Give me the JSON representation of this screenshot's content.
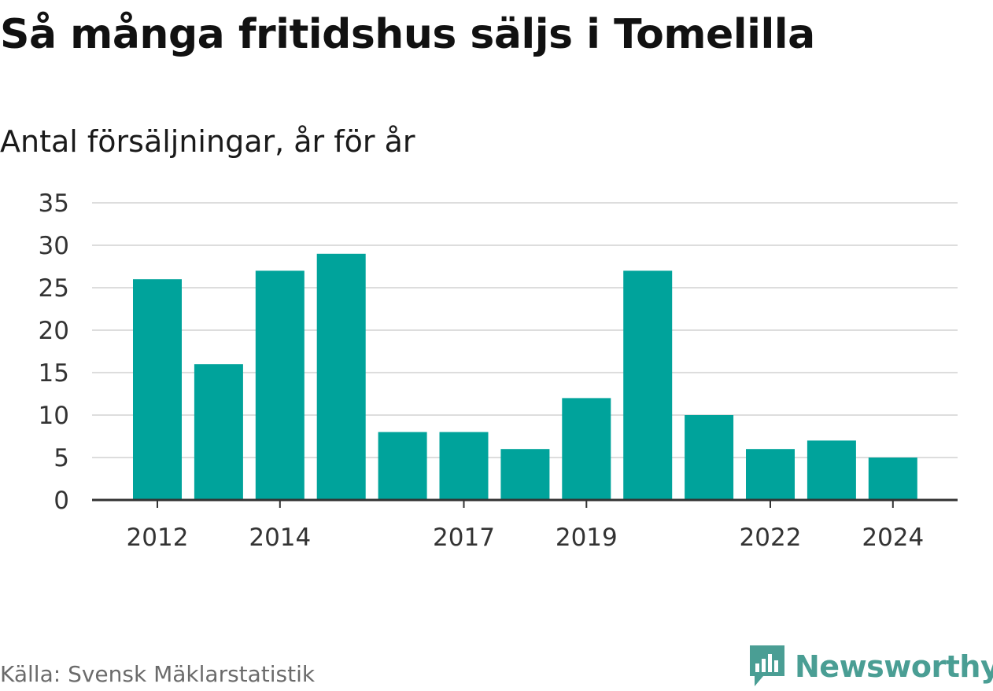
{
  "title": "Så många fritidshus säljs i Tomelilla",
  "subtitle": "Antal försäljningar, år för år",
  "source": "Källa: Svensk Mäklarstatistik",
  "brand": "Newsworthy",
  "colors": {
    "bar": "#00a39b",
    "grid": "#dddddd",
    "axis": "#333333",
    "brand": "#4a9e94"
  },
  "icons": {
    "logo": "newsworthy-chart-bubble-icon"
  },
  "chart_data": {
    "type": "bar",
    "categories": [
      "2012",
      "2013",
      "2014",
      "2015",
      "2016",
      "2017",
      "2018",
      "2019",
      "2020",
      "2021",
      "2022",
      "2023",
      "2024"
    ],
    "values": [
      26,
      16,
      27,
      29,
      8,
      8,
      6,
      12,
      27,
      10,
      6,
      7,
      5
    ],
    "x_tick_labels": [
      "2012",
      "2014",
      "2017",
      "2019",
      "2022",
      "2024"
    ],
    "y_ticks": [
      0,
      5,
      10,
      15,
      20,
      25,
      30,
      35
    ],
    "ylim": [
      0,
      35
    ],
    "xlabel": "",
    "ylabel": "",
    "grid": true,
    "legend": "none"
  }
}
